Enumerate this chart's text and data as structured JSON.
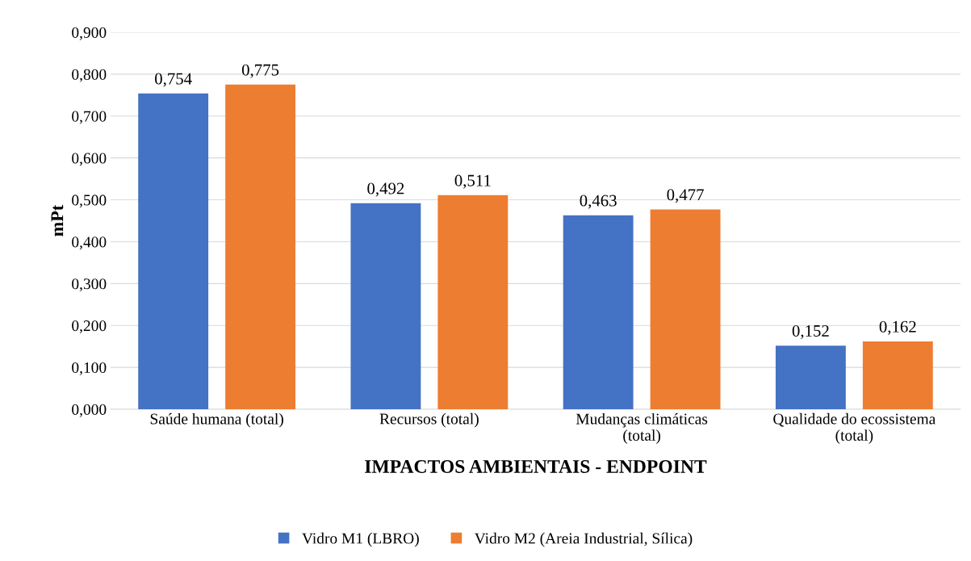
{
  "chart_data": {
    "type": "bar",
    "xlabel": "IMPACTOS AMBIENTAIS - ENDPOINT",
    "ylabel": "mPt",
    "categories": [
      "Saúde humana (total)",
      "Recursos (total)",
      "Mudanças climáticas\n(total)",
      "Qualidade do ecossistema\n(total)"
    ],
    "series": [
      {
        "name": "Vidro M1 (LBRO)",
        "color": "#4472c4",
        "values": [
          0.754,
          0.492,
          0.463,
          0.152
        ],
        "value_labels": [
          "0,754",
          "0,492",
          "0,463",
          "0,152"
        ]
      },
      {
        "name": "Vidro M2 (Areia Industrial, Sílica)",
        "color": "#ed7d31",
        "values": [
          0.775,
          0.511,
          0.477,
          0.162
        ],
        "value_labels": [
          "0,775",
          "0,511",
          "0,477",
          "0,162"
        ]
      }
    ],
    "ylim": [
      0,
      0.9
    ],
    "yticks": [
      {
        "value": 0,
        "label": "0,000"
      },
      {
        "value": 0.1,
        "label": "0,100"
      },
      {
        "value": 0.2,
        "label": "0,200"
      },
      {
        "value": 0.3,
        "label": "0,300"
      },
      {
        "value": 0.4,
        "label": "0,400"
      },
      {
        "value": 0.5,
        "label": "0,500"
      },
      {
        "value": 0.6,
        "label": "0,600"
      },
      {
        "value": 0.7,
        "label": "0,700"
      },
      {
        "value": 0.8,
        "label": "0,800"
      },
      {
        "value": 0.9,
        "label": "0,900"
      }
    ],
    "grid": "y",
    "legend": "bottom"
  }
}
